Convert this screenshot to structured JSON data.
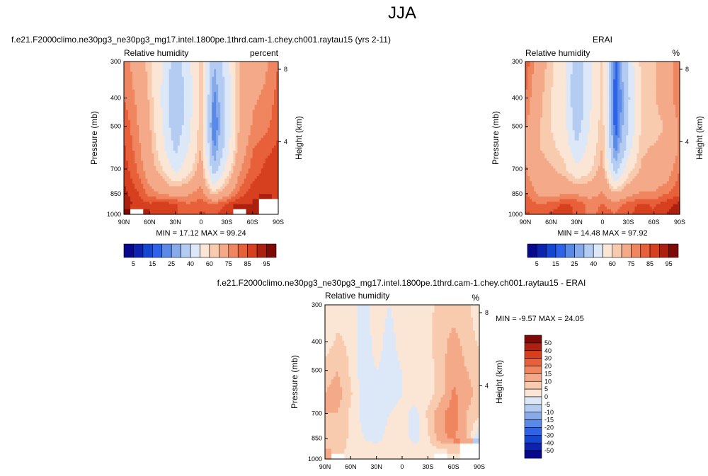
{
  "page": {
    "title": "JJA",
    "colors": {
      "full": [
        "#08088c",
        "#0c22b0",
        "#1446d2",
        "#2e62e8",
        "#5a8ae8",
        "#86aaea",
        "#b4ccf2",
        "#dce8f8",
        "#fbe6d6",
        "#f8caae",
        "#f4aa88",
        "#ef8660",
        "#e8603a",
        "#d6401e",
        "#ac2010",
        "#7e0a08"
      ],
      "diff": [
        "#08088c",
        "#0c22b0",
        "#1446d2",
        "#2e62e8",
        "#5a8ae8",
        "#86aaea",
        "#b4ccf2",
        "#dce8f8",
        "#fbe6d6",
        "#f8caae",
        "#f4aa88",
        "#ef8660",
        "#e8603a",
        "#d6401e",
        "#ac2010",
        "#7e0a08"
      ],
      "missing": "#ffffff"
    }
  },
  "chart_data": [
    {
      "type": "heatmap",
      "title": "f.e21.F2000climo.ne30pg3_ne30pg3_mg17.intel.1800pe.1thrd.cam-1.chey.ch001.raytau15 (yrs 2-11)",
      "subtitle_left": "Relative humidity",
      "subtitle_right": "percent",
      "xlabel": "",
      "ylabel": "Pressure (mb)",
      "ylabel_right": "Height (km)",
      "x_ticks": [
        "90N",
        "60N",
        "30N",
        "0",
        "30S",
        "60S",
        "90S"
      ],
      "y_ticks": [
        "300",
        "400",
        "500",
        "700",
        "850",
        "1000"
      ],
      "y_right_ticks": [
        "8",
        "4"
      ],
      "stats": "MIN = 17.12  MAX = 99.24",
      "colorbar": {
        "labels": [
          "5",
          "15",
          "25",
          "40",
          "60",
          "75",
          "85",
          "95"
        ],
        "orientation": "horizontal"
      },
      "lat": [
        90,
        75,
        60,
        45,
        30,
        15,
        0,
        -15,
        -30,
        -45,
        -60,
        -75,
        -90
      ],
      "levels": [
        300,
        400,
        500,
        600,
        700,
        850,
        925,
        1000
      ],
      "values": [
        [
          78,
          72,
          62,
          50,
          34,
          46,
          64,
          30,
          46,
          66,
          72,
          74,
          80
        ],
        [
          80,
          74,
          64,
          48,
          30,
          44,
          64,
          22,
          42,
          66,
          74,
          76,
          82
        ],
        [
          84,
          76,
          66,
          50,
          32,
          46,
          64,
          18,
          42,
          66,
          76,
          78,
          84
        ],
        [
          86,
          78,
          68,
          54,
          38,
          50,
          66,
          24,
          46,
          70,
          80,
          84,
          86
        ],
        [
          88,
          80,
          70,
          60,
          46,
          56,
          70,
          32,
          54,
          74,
          82,
          86,
          86
        ],
        [
          92,
          86,
          78,
          74,
          72,
          74,
          78,
          62,
          72,
          82,
          88,
          90,
          88
        ],
        [
          94,
          88,
          86,
          88,
          86,
          80,
          84,
          80,
          86,
          90,
          90,
          null,
          null
        ],
        [
          97,
          null,
          90,
          88,
          86,
          82,
          86,
          84,
          88,
          null,
          90,
          null,
          null
        ]
      ]
    },
    {
      "type": "heatmap",
      "title": "ERAI",
      "subtitle_left": "Relative humidity",
      "subtitle_right": "%",
      "xlabel": "",
      "ylabel": "Pressure (mb)",
      "ylabel_right": "Height (km)",
      "x_ticks": [
        "90N",
        "60N",
        "30N",
        "0",
        "30S",
        "60S",
        "90S"
      ],
      "y_ticks": [
        "300",
        "400",
        "500",
        "700",
        "850",
        "1000"
      ],
      "y_right_ticks": [
        "8",
        "4"
      ],
      "stats": "MIN = 14.48  MAX = 97.92",
      "colorbar": {
        "labels": [
          "5",
          "15",
          "25",
          "40",
          "60",
          "75",
          "85",
          "95"
        ],
        "orientation": "horizontal"
      },
      "lat": [
        90,
        75,
        60,
        45,
        30,
        15,
        0,
        -15,
        -30,
        -45,
        -60,
        -75,
        -90
      ],
      "levels": [
        300,
        400,
        500,
        600,
        700,
        850,
        925,
        1000
      ],
      "values": [
        [
          84,
          70,
          62,
          52,
          32,
          46,
          62,
          18,
          42,
          62,
          64,
          70,
          80
        ],
        [
          80,
          68,
          60,
          52,
          30,
          48,
          62,
          14,
          38,
          60,
          64,
          70,
          80
        ],
        [
          76,
          66,
          60,
          54,
          34,
          50,
          64,
          16,
          40,
          60,
          62,
          66,
          76
        ],
        [
          74,
          66,
          62,
          58,
          42,
          54,
          66,
          22,
          46,
          64,
          66,
          68,
          76
        ],
        [
          76,
          68,
          66,
          62,
          52,
          58,
          68,
          34,
          56,
          66,
          66,
          70,
          80
        ],
        [
          80,
          74,
          72,
          74,
          74,
          72,
          76,
          66,
          72,
          76,
          76,
          80,
          84
        ],
        [
          84,
          80,
          82,
          86,
          84,
          78,
          80,
          78,
          82,
          86,
          84,
          88,
          92
        ],
        [
          86,
          84,
          86,
          88,
          84,
          78,
          82,
          80,
          84,
          88,
          86,
          90,
          96
        ]
      ]
    },
    {
      "type": "heatmap",
      "title": "f.e21.F2000climo.ne30pg3_ne30pg3_mg17.intel.1800pe.1thrd.cam-1.chey.ch001.raytau15 - ERAI",
      "subtitle_left": "Relative humidity",
      "subtitle_right": "%",
      "xlabel": "",
      "ylabel": "Pressure (mb)",
      "ylabel_right": "Height (km)",
      "x_ticks": [
        "90N",
        "60N",
        "30N",
        "0",
        "30S",
        "60S",
        "90S"
      ],
      "y_ticks": [
        "300",
        "400",
        "500",
        "700",
        "850",
        "1000"
      ],
      "y_right_ticks": [
        "8",
        "4"
      ],
      "stats": "MIN = -9.57  MAX = 24.05",
      "colorbar": {
        "labels": [
          "50",
          "40",
          "30",
          "20",
          "15",
          "10",
          "5",
          "0",
          "-5",
          "-10",
          "-15",
          "-20",
          "-30",
          "-40",
          "-50"
        ],
        "orientation": "vertical"
      },
      "lat": [
        90,
        75,
        60,
        45,
        30,
        15,
        0,
        -15,
        -30,
        -45,
        -60,
        -75,
        -90
      ],
      "levels": [
        300,
        400,
        500,
        600,
        700,
        850,
        925,
        1000
      ],
      "values": [
        [
          2,
          3,
          2,
          -2,
          2,
          0,
          2,
          2,
          4,
          6,
          8,
          6,
          2
        ],
        [
          2,
          6,
          4,
          -3,
          2,
          -2,
          2,
          3,
          4,
          8,
          12,
          8,
          4
        ],
        [
          8,
          10,
          4,
          -3,
          0,
          -2,
          0,
          4,
          2,
          8,
          14,
          10,
          8
        ],
        [
          10,
          12,
          6,
          -4,
          -3,
          -3,
          0,
          3,
          2,
          8,
          16,
          12,
          8
        ],
        [
          10,
          10,
          4,
          -2,
          -4,
          0,
          2,
          -2,
          6,
          14,
          18,
          10,
          6
        ],
        [
          8,
          8,
          4,
          0,
          -2,
          2,
          2,
          -2,
          4,
          14,
          16,
          10,
          -6
        ],
        [
          10,
          8,
          4,
          2,
          2,
          2,
          4,
          2,
          4,
          4,
          6,
          null,
          null
        ],
        [
          10,
          null,
          4,
          0,
          2,
          4,
          4,
          4,
          4,
          null,
          4,
          null,
          null
        ]
      ]
    }
  ]
}
